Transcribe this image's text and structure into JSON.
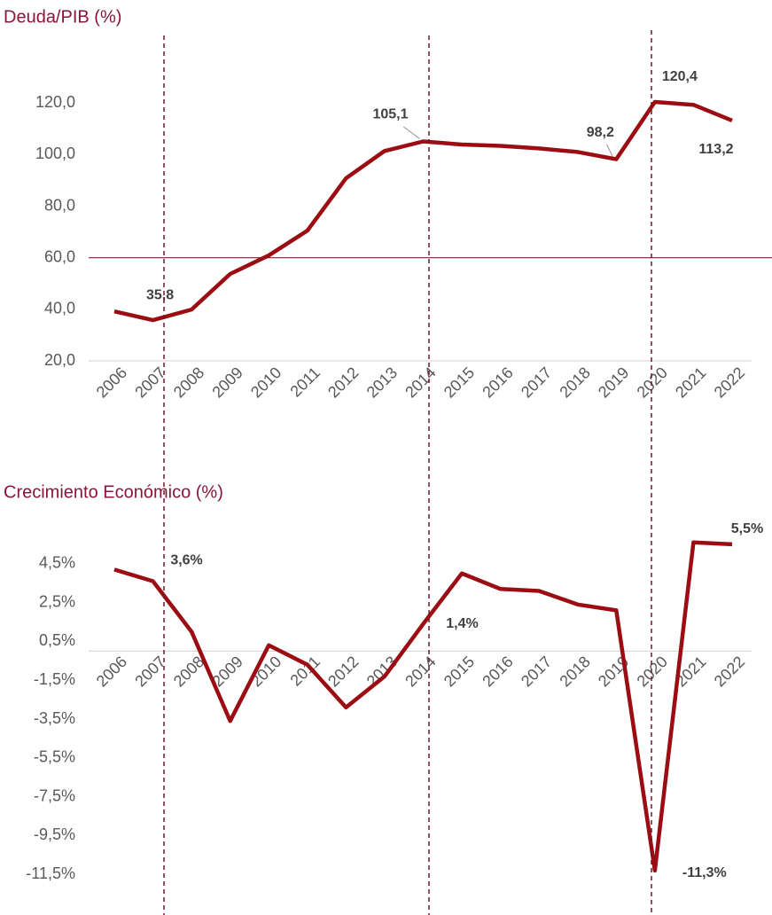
{
  "chart_data": [
    {
      "type": "line",
      "title": "Deuda/PIB (%)",
      "categories": [
        "2006",
        "2007",
        "2008",
        "2009",
        "2010",
        "2011",
        "2012",
        "2013",
        "2014",
        "2015",
        "2016",
        "2017",
        "2018",
        "2019",
        "2020",
        "2021",
        "2022"
      ],
      "values": [
        39.2,
        35.8,
        39.9,
        53.7,
        60.9,
        70.5,
        90.8,
        101.4,
        105.1,
        103.9,
        103.4,
        102.4,
        101.0,
        98.2,
        120.4,
        119.3,
        113.2
      ],
      "value_labels": [
        null,
        "35,8",
        null,
        null,
        null,
        null,
        null,
        null,
        "105,1",
        null,
        null,
        null,
        null,
        "98,2",
        "120,4",
        null,
        "113,2"
      ],
      "color": "#9b0d12",
      "ylim": [
        20,
        140
      ],
      "yticks": [
        {
          "value": 20,
          "label": "20,0"
        },
        {
          "value": 40,
          "label": "40,0"
        },
        {
          "value": 60,
          "label": "60,0"
        },
        {
          "value": 80,
          "label": "80,0"
        },
        {
          "value": 100,
          "label": "100,0"
        },
        {
          "value": 120,
          "label": "120,0"
        }
      ],
      "reference_line": 60,
      "reference_color": "#7a1f3d"
    },
    {
      "type": "line",
      "title": "Crecimiento Económico (%)",
      "categories": [
        "2006",
        "2007",
        "2008",
        "2009",
        "2010",
        "2011",
        "2012",
        "2013",
        "2014",
        "2015",
        "2016",
        "2017",
        "2018",
        "2019",
        "2020",
        "2021",
        "2022"
      ],
      "values": [
        4.2,
        3.6,
        1.0,
        -3.6,
        0.3,
        -0.7,
        -2.9,
        -1.3,
        1.4,
        4.0,
        3.2,
        3.1,
        2.4,
        2.1,
        -11.3,
        5.6,
        5.5
      ],
      "value_labels": [
        null,
        "3,6%",
        null,
        null,
        null,
        null,
        null,
        null,
        "1,4%",
        null,
        null,
        null,
        null,
        null,
        "-11,3%",
        null,
        "5,5%"
      ],
      "color": "#9b0d12",
      "ylim": [
        -13.5,
        6.5
      ],
      "yticks": [
        {
          "value": -11.5,
          "label": "-11,5%"
        },
        {
          "value": -9.5,
          "label": "-9,5%"
        },
        {
          "value": -7.5,
          "label": "-7,5%"
        },
        {
          "value": -5.5,
          "label": "-5,5%"
        },
        {
          "value": -3.5,
          "label": "-3,5%"
        },
        {
          "value": -1.5,
          "label": "-1,5%"
        },
        {
          "value": 0.5,
          "label": "0,5%"
        },
        {
          "value": 2.5,
          "label": "2,5%"
        },
        {
          "value": 4.5,
          "label": "4,5%"
        }
      ]
    }
  ]
}
